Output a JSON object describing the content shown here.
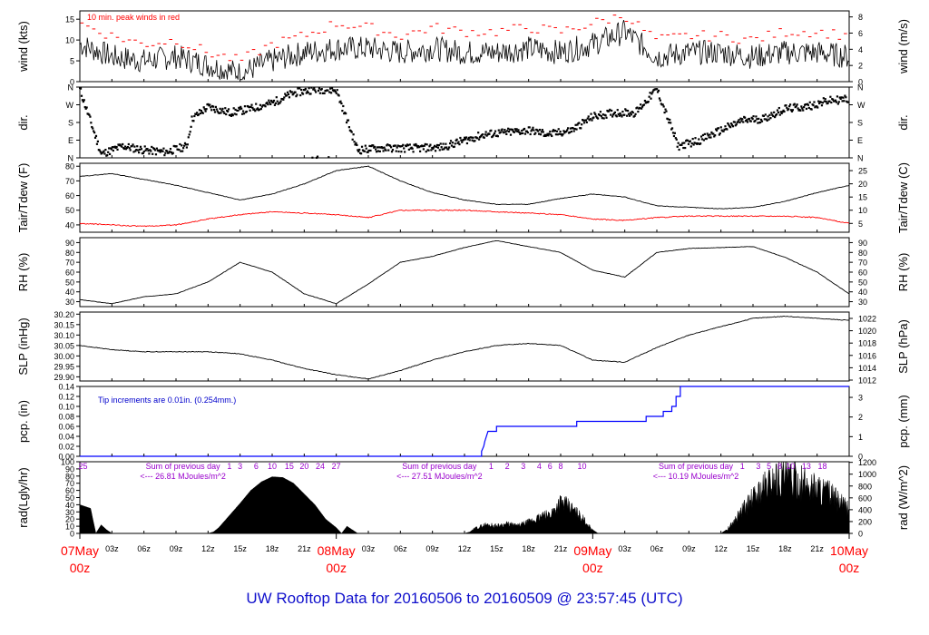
{
  "title": "UW Rooftop Data for 20160506  to  20160509 @ 23:57:45  (UTC)",
  "colors": {
    "trace": "#000000",
    "peak": "#ff0000",
    "dewpoint": "#ff0000",
    "precip": "#0000ff",
    "note_blue": "#0000cc",
    "note_purple": "#9900cc",
    "date_red": "#ff0000"
  },
  "time_axis": {
    "hour_ticks": [
      "03z",
      "06z",
      "09z",
      "12z",
      "15z",
      "18z",
      "21z",
      "03z",
      "06z",
      "09z",
      "12z",
      "15z",
      "18z",
      "21z",
      "03z",
      "06z",
      "09z",
      "12z",
      "15z",
      "18z",
      "21z"
    ],
    "hour_values": [
      3,
      6,
      9,
      12,
      15,
      18,
      21,
      27,
      30,
      33,
      36,
      39,
      42,
      45,
      51,
      54,
      57,
      60,
      63,
      66,
      69
    ],
    "day_labels": [
      {
        "date": "07May",
        "hour": "00z",
        "t": 0
      },
      {
        "date": "08May",
        "hour": "00z",
        "t": 24
      },
      {
        "date": "09May",
        "hour": "00z",
        "t": 48
      },
      {
        "date": "10May",
        "hour": "00z",
        "t": 72
      }
    ]
  },
  "chart_data": [
    {
      "type": "line",
      "name": "wind",
      "ylabel_left": "wind (kts)",
      "ylabel_right": "wind (m/s)",
      "ylim": [
        0,
        17
      ],
      "yticks": [
        0,
        5,
        10,
        15
      ],
      "yticks_right": [
        0,
        2,
        4,
        6,
        8
      ],
      "right_factor": 0.5144,
      "annotation": "10 min. peak winds in red",
      "x": [
        0,
        3,
        6,
        9,
        12,
        15,
        18,
        21,
        24,
        27,
        30,
        33,
        36,
        39,
        42,
        45,
        48,
        51,
        54,
        57,
        60,
        63,
        66,
        69,
        72
      ],
      "series": [
        {
          "values": [
            9,
            6,
            5,
            6,
            4,
            2,
            5,
            7,
            8,
            8,
            7,
            8,
            7,
            7,
            8,
            7,
            9,
            12,
            6,
            7,
            7,
            6,
            7,
            7,
            6
          ]
        }
      ],
      "peaks": [
        {
          "values": [
            14,
            11,
            9,
            10,
            7,
            5,
            9,
            11,
            14,
            13,
            11,
            13,
            12,
            12,
            13,
            12,
            14,
            16,
            10,
            11,
            11,
            10,
            12,
            12,
            11
          ]
        }
      ]
    },
    {
      "type": "scatter",
      "name": "dir",
      "ylabel_left": "dir.",
      "ylabel_right": "dir.",
      "yticks_labels": [
        "N",
        "E",
        "S",
        "W",
        "N"
      ],
      "x": [
        0,
        2,
        4,
        6,
        8,
        10,
        10.5,
        12,
        14,
        16,
        18,
        20,
        22,
        24,
        26,
        28,
        30,
        32,
        34,
        36,
        38,
        40,
        42,
        44,
        46,
        48,
        50,
        52,
        54,
        56,
        58,
        60,
        62,
        64,
        66,
        68,
        70,
        72
      ],
      "values": [
        350,
        20,
        60,
        40,
        30,
        60,
        200,
        260,
        230,
        250,
        280,
        330,
        350,
        345,
        40,
        50,
        50,
        50,
        55,
        90,
        120,
        130,
        140,
        120,
        140,
        210,
        230,
        230,
        350,
        60,
        90,
        140,
        190,
        200,
        250,
        260,
        290,
        300
      ]
    },
    {
      "type": "line",
      "name": "temp",
      "ylabel_left": "Tair/Tdew (F)",
      "ylabel_right": "Tair/Tdew (C)",
      "ylim": [
        35,
        82
      ],
      "yticks": [
        40,
        50,
        60,
        70,
        80
      ],
      "yticks_right": [
        5,
        10,
        15,
        20,
        25
      ],
      "x": [
        0,
        3,
        6,
        9,
        12,
        15,
        18,
        21,
        24,
        27,
        30,
        33,
        36,
        39,
        42,
        45,
        48,
        51,
        54,
        57,
        60,
        63,
        66,
        69,
        72
      ],
      "series": [
        {
          "values": [
            73,
            75,
            71,
            67,
            62,
            57,
            61,
            68,
            77,
            80,
            70,
            62,
            57,
            54,
            54,
            58,
            61,
            59,
            53,
            52,
            51,
            52,
            56,
            62,
            67
          ]
        },
        {
          "values": [
            41,
            40,
            39,
            40,
            44,
            47,
            49,
            48,
            47,
            45,
            50,
            50,
            50,
            49,
            48,
            47,
            44,
            43,
            45,
            46,
            46,
            46,
            46,
            45,
            41
          ]
        }
      ]
    },
    {
      "type": "line",
      "name": "rh",
      "ylabel_left": "RH (%)",
      "ylabel_right": "RH (%)",
      "ylim": [
        25,
        95
      ],
      "yticks": [
        30,
        40,
        50,
        60,
        70,
        80,
        90
      ],
      "yticks_right": [
        30,
        40,
        50,
        60,
        70,
        80,
        90
      ],
      "x": [
        0,
        3,
        6,
        9,
        12,
        15,
        18,
        21,
        24,
        27,
        30,
        33,
        36,
        39,
        42,
        45,
        48,
        51,
        54,
        57,
        60,
        63,
        66,
        69,
        72
      ],
      "series": [
        {
          "values": [
            32,
            28,
            35,
            38,
            50,
            70,
            60,
            38,
            28,
            48,
            70,
            76,
            85,
            92,
            86,
            80,
            62,
            55,
            80,
            84,
            85,
            86,
            75,
            60,
            38
          ]
        }
      ]
    },
    {
      "type": "line",
      "name": "slp",
      "ylabel_left": "SLP (inHg)",
      "ylabel_right": "SLP (hPa)",
      "ylim": [
        29.88,
        30.21
      ],
      "yticks": [
        29.9,
        29.95,
        30.0,
        30.05,
        30.1,
        30.15,
        30.2
      ],
      "yticks_right": [
        1012,
        1014,
        1016,
        1018,
        1020,
        1022
      ],
      "x": [
        0,
        3,
        6,
        9,
        12,
        15,
        18,
        21,
        24,
        27,
        30,
        33,
        36,
        39,
        42,
        45,
        48,
        51,
        54,
        57,
        60,
        63,
        66,
        69,
        72
      ],
      "series": [
        {
          "values": [
            30.05,
            30.03,
            30.02,
            30.02,
            30.02,
            30.01,
            29.98,
            29.94,
            29.91,
            29.89,
            29.93,
            29.98,
            30.02,
            30.05,
            30.06,
            30.05,
            29.98,
            29.97,
            30.04,
            30.1,
            30.14,
            30.18,
            30.19,
            30.18,
            30.17
          ]
        }
      ]
    },
    {
      "type": "line",
      "name": "pcp",
      "ylabel_left": "pcp. (in)",
      "ylabel_right": "pcp. (mm)",
      "ylim": [
        0,
        0.14
      ],
      "yticks": [
        0,
        0.02,
        0.04,
        0.06,
        0.08,
        0.1,
        0.12,
        0.14
      ],
      "yticks_right": [
        0,
        1,
        2,
        3
      ],
      "annotation": "Tip increments are 0.01in. (0.254mm.)",
      "steps": [
        [
          0,
          0
        ],
        [
          37.6,
          0
        ],
        [
          37.6,
          0.01
        ],
        [
          37.8,
          0.02
        ],
        [
          37.9,
          0.03
        ],
        [
          38.2,
          0.05
        ],
        [
          39,
          0.05
        ],
        [
          39,
          0.06
        ],
        [
          46.5,
          0.06
        ],
        [
          46.5,
          0.07
        ],
        [
          53,
          0.07
        ],
        [
          53,
          0.08
        ],
        [
          54.6,
          0.08
        ],
        [
          54.6,
          0.09
        ],
        [
          55.4,
          0.09
        ],
        [
          55.4,
          0.1
        ],
        [
          55.8,
          0.1
        ],
        [
          55.8,
          0.12
        ],
        [
          56.2,
          0.12
        ],
        [
          56.2,
          0.14
        ],
        [
          72,
          0.14
        ]
      ]
    },
    {
      "type": "area",
      "name": "rad",
      "ylabel_left": "rad(Lgly/hr)",
      "ylabel_right": "rad (W/m^2)",
      "ylim": [
        0,
        100
      ],
      "yticks": [
        0,
        10,
        20,
        30,
        40,
        50,
        60,
        70,
        80,
        90,
        100
      ],
      "yticks_right": [
        0,
        200,
        400,
        600,
        800,
        1000,
        1200
      ],
      "x": [
        0,
        1,
        1.5,
        2,
        2.5,
        3,
        12,
        12.5,
        13,
        14,
        15,
        16,
        17,
        18,
        19,
        20,
        21,
        22,
        23,
        24,
        24.5,
        25,
        25.5,
        26,
        36,
        36.5,
        37,
        38,
        39,
        40,
        41,
        42,
        43,
        44,
        45,
        46,
        47,
        48,
        48.5,
        49,
        60,
        60.5,
        61,
        62,
        63,
        64,
        65,
        66,
        67,
        68,
        69,
        70,
        71,
        72
      ],
      "values": [
        40,
        35,
        0,
        12,
        5,
        0,
        0,
        2,
        8,
        25,
        42,
        60,
        72,
        79,
        78,
        70,
        55,
        40,
        20,
        8,
        0,
        10,
        5,
        0,
        0,
        2,
        8,
        14,
        12,
        15,
        12,
        18,
        25,
        30,
        50,
        40,
        25,
        5,
        0,
        0,
        0,
        5,
        15,
        40,
        60,
        80,
        95,
        100,
        90,
        85,
        80,
        70,
        55,
        40
      ],
      "daily_labels": [
        {
          "text": "Sum of previous day",
          "value": "<--- 26.81 MJoules/m^2"
        },
        {
          "text": "Sum of previous day",
          "value": "<--- 27.51 MJoules/m^2"
        },
        {
          "text": "Sum of previous day",
          "value": "<--- 10.19 MJoules/m^2"
        }
      ],
      "hour_marks": [
        {
          "text": "25",
          "t": 0.3
        },
        {
          "text": "1",
          "t": 14.0
        },
        {
          "text": "3",
          "t": 15.0
        },
        {
          "text": "6",
          "t": 16.5
        },
        {
          "text": "10",
          "t": 18.0
        },
        {
          "text": "15",
          "t": 19.6
        },
        {
          "text": "20",
          "t": 21.0
        },
        {
          "text": "24",
          "t": 22.5
        },
        {
          "text": "27",
          "t": 24.0
        },
        {
          "text": "1",
          "t": 38.5
        },
        {
          "text": "2",
          "t": 40.0
        },
        {
          "text": "3",
          "t": 41.5
        },
        {
          "text": "4",
          "t": 43.0
        },
        {
          "text": "6",
          "t": 44.0
        },
        {
          "text": "8",
          "t": 45.0
        },
        {
          "text": "10",
          "t": 47.0
        },
        {
          "text": "1",
          "t": 62.0
        },
        {
          "text": "3",
          "t": 63.5
        },
        {
          "text": "5",
          "t": 64.5
        },
        {
          "text": "8",
          "t": 65.5
        },
        {
          "text": "10",
          "t": 66.5
        },
        {
          "text": "13",
          "t": 68.0
        },
        {
          "text": "18",
          "t": 69.5
        }
      ]
    }
  ]
}
